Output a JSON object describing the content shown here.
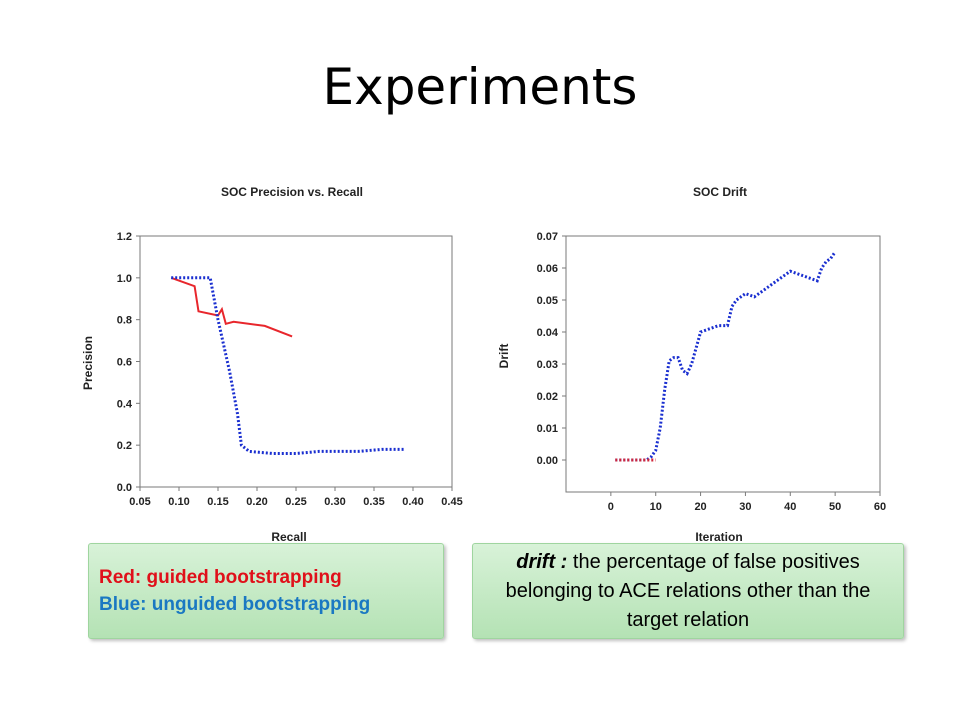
{
  "slide": {
    "title": "Experiments"
  },
  "chart_data": [
    {
      "type": "line",
      "title": "SOC Precision vs. Recall",
      "xlabel": "Recall",
      "ylabel": "Precision",
      "xlim": [
        0.05,
        0.45
      ],
      "ylim": [
        0.0,
        1.2
      ],
      "xticks": [
        "0.05",
        "0.10",
        "0.15",
        "0.20",
        "0.25",
        "0.30",
        "0.35",
        "0.40",
        "0.45"
      ],
      "yticks": [
        "0.0",
        "0.2",
        "0.4",
        "0.6",
        "0.8",
        "1.0",
        "1.2"
      ],
      "series": [
        {
          "color": "#e8262c",
          "style": "solid",
          "points": [
            [
              0.09,
              1.0
            ],
            [
              0.12,
              0.96
            ],
            [
              0.125,
              0.84
            ],
            [
              0.15,
              0.82
            ],
            [
              0.155,
              0.85
            ],
            [
              0.16,
              0.78
            ],
            [
              0.17,
              0.79
            ],
            [
              0.21,
              0.77
            ],
            [
              0.245,
              0.72
            ]
          ]
        },
        {
          "color": "#1a2fd0",
          "style": "dotted",
          "points": [
            [
              0.09,
              1.0
            ],
            [
              0.14,
              1.0
            ],
            [
              0.15,
              0.8
            ],
            [
              0.165,
              0.55
            ],
            [
              0.175,
              0.35
            ],
            [
              0.18,
              0.2
            ],
            [
              0.19,
              0.17
            ],
            [
              0.22,
              0.16
            ],
            [
              0.25,
              0.16
            ],
            [
              0.28,
              0.17
            ],
            [
              0.3,
              0.17
            ],
            [
              0.33,
              0.17
            ],
            [
              0.36,
              0.18
            ],
            [
              0.39,
              0.18
            ]
          ]
        }
      ]
    },
    {
      "type": "line",
      "title": "SOC Drift",
      "xlabel": "Iteration",
      "ylabel": "Drift",
      "xlim": [
        -10,
        60
      ],
      "ylim": [
        -0.01,
        0.07
      ],
      "xticks": [
        "0",
        "10",
        "20",
        "30",
        "40",
        "50",
        "60"
      ],
      "yticks": [
        "0.00",
        "0.01",
        "0.02",
        "0.03",
        "0.04",
        "0.05",
        "0.06",
        "0.07"
      ],
      "series": [
        {
          "color": "#1a2fd0",
          "style": "dotted",
          "points": [
            [
              1,
              0.0
            ],
            [
              8,
              0.0
            ],
            [
              9,
              0.001
            ],
            [
              10,
              0.003
            ],
            [
              11,
              0.01
            ],
            [
              12,
              0.022
            ],
            [
              13,
              0.031
            ],
            [
              14,
              0.032
            ],
            [
              15,
              0.032
            ],
            [
              16,
              0.028
            ],
            [
              17,
              0.027
            ],
            [
              18,
              0.03
            ],
            [
              20,
              0.04
            ],
            [
              22,
              0.041
            ],
            [
              24,
              0.042
            ],
            [
              26,
              0.042
            ],
            [
              27,
              0.048
            ],
            [
              28,
              0.05
            ],
            [
              30,
              0.052
            ],
            [
              32,
              0.051
            ],
            [
              34,
              0.053
            ],
            [
              36,
              0.055
            ],
            [
              38,
              0.057
            ],
            [
              40,
              0.059
            ],
            [
              42,
              0.058
            ],
            [
              44,
              0.057
            ],
            [
              46,
              0.056
            ],
            [
              47,
              0.06
            ],
            [
              48,
              0.062
            ],
            [
              49,
              0.063
            ],
            [
              50,
              0.065
            ]
          ]
        },
        {
          "color": "#d0263a",
          "style": "dotted",
          "points": [
            [
              1,
              0.0
            ],
            [
              10,
              0.0
            ]
          ]
        }
      ]
    }
  ],
  "legend": {
    "red": "Red: guided bootstrapping",
    "blue": "Blue: unguided bootstrapping"
  },
  "note": {
    "term": "drift :",
    "text": " the percentage of false positives belonging to ACE relations other than the target relation"
  }
}
